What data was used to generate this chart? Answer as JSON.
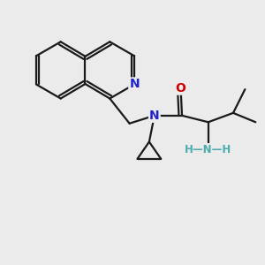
{
  "background_color": "#ebebeb",
  "atom_color_N": "#2222cc",
  "atom_color_O": "#cc0000",
  "atom_color_NH": "#4aacac",
  "bond_color": "#1a1a1a",
  "bond_width": 1.6,
  "fig_width": 3.0,
  "fig_height": 3.0,
  "dpi": 100,
  "xlim": [
    0,
    10
  ],
  "ylim": [
    0,
    10
  ]
}
